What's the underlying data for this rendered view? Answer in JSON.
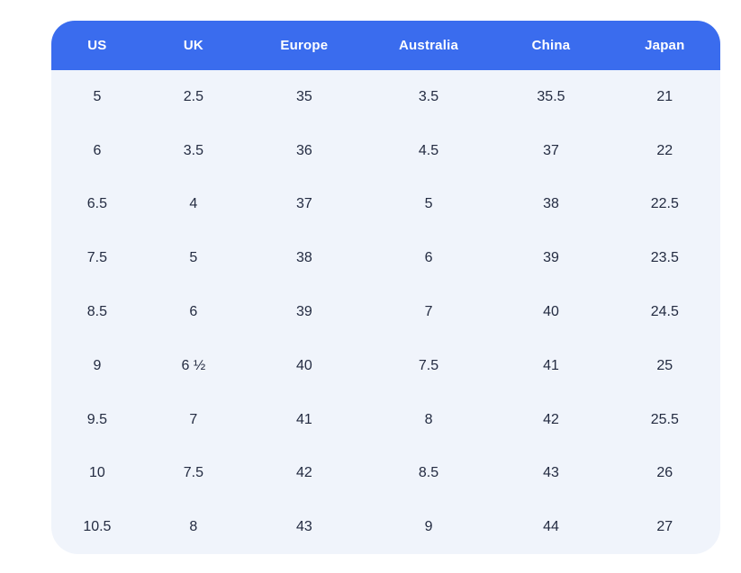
{
  "chart_data": {
    "type": "table",
    "title": "",
    "columns": [
      "US",
      "UK",
      "Europe",
      "Australia",
      "China",
      "Japan"
    ],
    "rows": [
      [
        "5",
        "2.5",
        "35",
        "3.5",
        "35.5",
        "21"
      ],
      [
        "6",
        "3.5",
        "36",
        "4.5",
        "37",
        "22"
      ],
      [
        "6.5",
        "4",
        "37",
        "5",
        "38",
        "22.5"
      ],
      [
        "7.5",
        "5",
        "38",
        "6",
        "39",
        "23.5"
      ],
      [
        "8.5",
        "6",
        "39",
        "7",
        "40",
        "24.5"
      ],
      [
        "9",
        "6 ½",
        "40",
        "7.5",
        "41",
        "25"
      ],
      [
        "9.5",
        "7",
        "41",
        "8",
        "42",
        "25.5"
      ],
      [
        "10",
        "7.5",
        "42",
        "8.5",
        "43",
        "26"
      ],
      [
        "10.5",
        "8",
        "43",
        "9",
        "44",
        "27"
      ]
    ]
  },
  "colors": {
    "header_bg": "#3a6cee",
    "header_text": "#ffffff",
    "body_bg": "#f0f4fb",
    "body_text": "#232b41",
    "page_bg": "#ffffff"
  }
}
